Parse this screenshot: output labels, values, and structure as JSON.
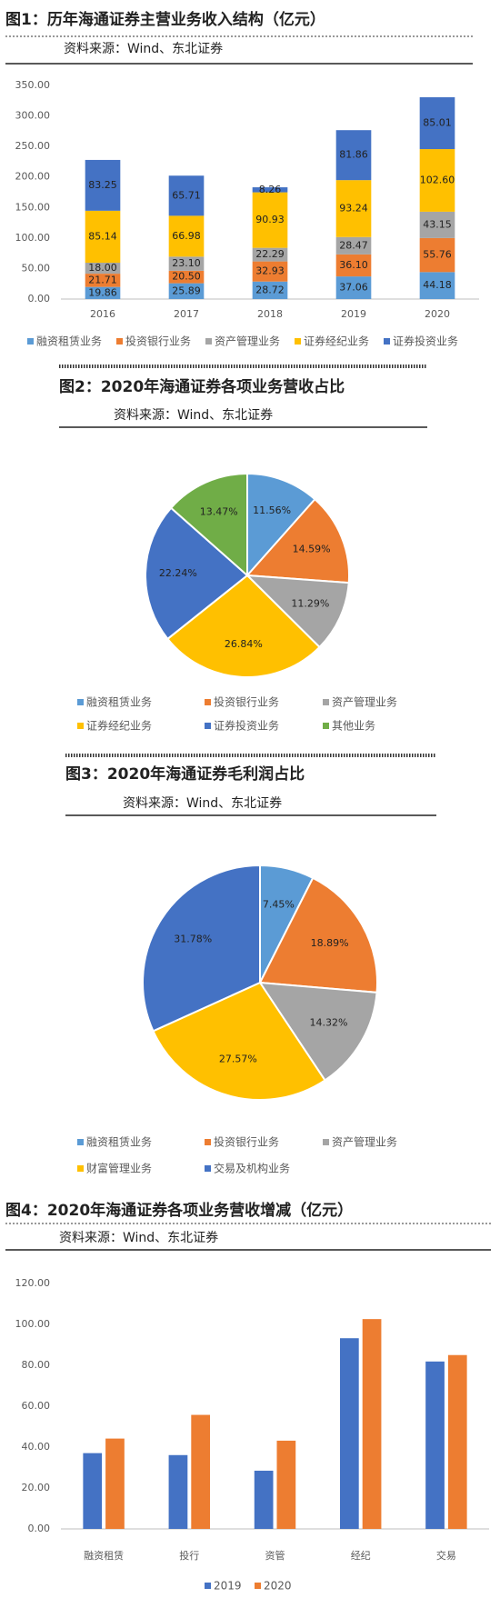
{
  "chart_data": [
    {
      "type": "stacked-bar",
      "title": "图1：历年海通证券主营业务收入结构（亿元）",
      "source": "资料来源：Wind、东北证券",
      "categories": [
        "2016",
        "2017",
        "2018",
        "2019",
        "2020"
      ],
      "series": [
        {
          "name": "融资租赁业务",
          "color": "#5b9bd5",
          "values": [
            19.86,
            25.89,
            28.72,
            37.06,
            44.18
          ],
          "value_labels": [
            "19.86",
            "25.89",
            "28.72",
            "37.06",
            "44.18"
          ]
        },
        {
          "name": "投资银行业务",
          "color": "#ed7d31",
          "values": [
            21.71,
            20.5,
            32.93,
            36.1,
            55.76
          ],
          "value_labels": [
            "21.71",
            "20.50",
            "32.93",
            "36.10",
            "55.76"
          ]
        },
        {
          "name": "资产管理业务",
          "color": "#a5a5a5",
          "values": [
            18,
            23.1,
            22.29,
            28.47,
            43.15
          ],
          "value_labels": [
            "18.00",
            "23.10",
            "22.29",
            "28.47",
            "43.15"
          ]
        },
        {
          "name": "证券经纪业务",
          "color": "#ffc000",
          "values": [
            85.14,
            66.98,
            90.93,
            93.24,
            102.6
          ],
          "value_labels": [
            "85.14",
            "66.98",
            "90.93",
            "93.24",
            "102.60"
          ]
        },
        {
          "name": "证券投资业务",
          "color": "#4472c4",
          "values": [
            83.25,
            65.71,
            8.26,
            81.86,
            85.01
          ],
          "value_labels": [
            "83.25",
            "65.71",
            "8.26",
            "81.86",
            "85.01"
          ]
        }
      ],
      "ylim": [
        0,
        350
      ],
      "yticks": [
        {
          "value": 0,
          "label": "0.00"
        },
        {
          "value": 50,
          "label": "50.00"
        },
        {
          "value": 100,
          "label": "100.00"
        },
        {
          "value": 150,
          "label": "150.00"
        },
        {
          "value": 200,
          "label": "200.00"
        },
        {
          "value": 250,
          "label": "250.00"
        },
        {
          "value": 300,
          "label": "300.00"
        },
        {
          "value": 350,
          "label": "350.00"
        }
      ]
    },
    {
      "type": "pie",
      "title": "图2：2020年海通证券各项业务营收占比",
      "source": "资料来源：Wind、东北证券",
      "categories": [
        "融资租赁业务",
        "投资银行业务",
        "资产管理业务",
        "证券经纪业务",
        "证券投资业务",
        "其他业务"
      ],
      "colors": [
        "#5b9bd5",
        "#ed7d31",
        "#a5a5a5",
        "#ffc000",
        "#4472c4",
        "#70ad47"
      ],
      "values": [
        11.56,
        14.59,
        11.29,
        26.84,
        22.24,
        13.47
      ],
      "value_labels": [
        "11.56%",
        "14.59%",
        "11.29%",
        "26.84%",
        "22.24%",
        "13.47%"
      ]
    },
    {
      "type": "pie",
      "title": "图3：2020年海通证券毛利润占比",
      "source": "资料来源：Wind、东北证券",
      "categories": [
        "融资租赁业务",
        "投资银行业务",
        "资产管理业务",
        "财富管理业务",
        "交易及机构业务"
      ],
      "colors": [
        "#5b9bd5",
        "#ed7d31",
        "#a5a5a5",
        "#ffc000",
        "#4472c4"
      ],
      "values": [
        7.45,
        18.89,
        14.32,
        27.57,
        31.78
      ],
      "value_labels": [
        "7.45%",
        "18.89%",
        "14.32%",
        "27.57%",
        "31.78%"
      ]
    },
    {
      "type": "grouped-bar",
      "title": "图4：2020年海通证券各项业务营收增减（亿元）",
      "source": "资料来源：Wind、东北证券",
      "categories": [
        "融资租赁",
        "投行",
        "资管",
        "经纪",
        "交易"
      ],
      "series": [
        {
          "name": "2019",
          "color": "#4472c4",
          "values": [
            37.06,
            36.1,
            28.47,
            93.24,
            81.86
          ]
        },
        {
          "name": "2020",
          "color": "#ed7d31",
          "values": [
            44.18,
            55.76,
            43.15,
            102.6,
            85.01
          ]
        }
      ],
      "ylim": [
        0,
        120
      ],
      "yticks": [
        {
          "value": 0,
          "label": "0.00"
        },
        {
          "value": 20,
          "label": "20.00"
        },
        {
          "value": 40,
          "label": "40.00"
        },
        {
          "value": 60,
          "label": "60.00"
        },
        {
          "value": 80,
          "label": "80.00"
        },
        {
          "value": 100,
          "label": "100.00"
        },
        {
          "value": 120,
          "label": "120.00"
        }
      ]
    }
  ]
}
